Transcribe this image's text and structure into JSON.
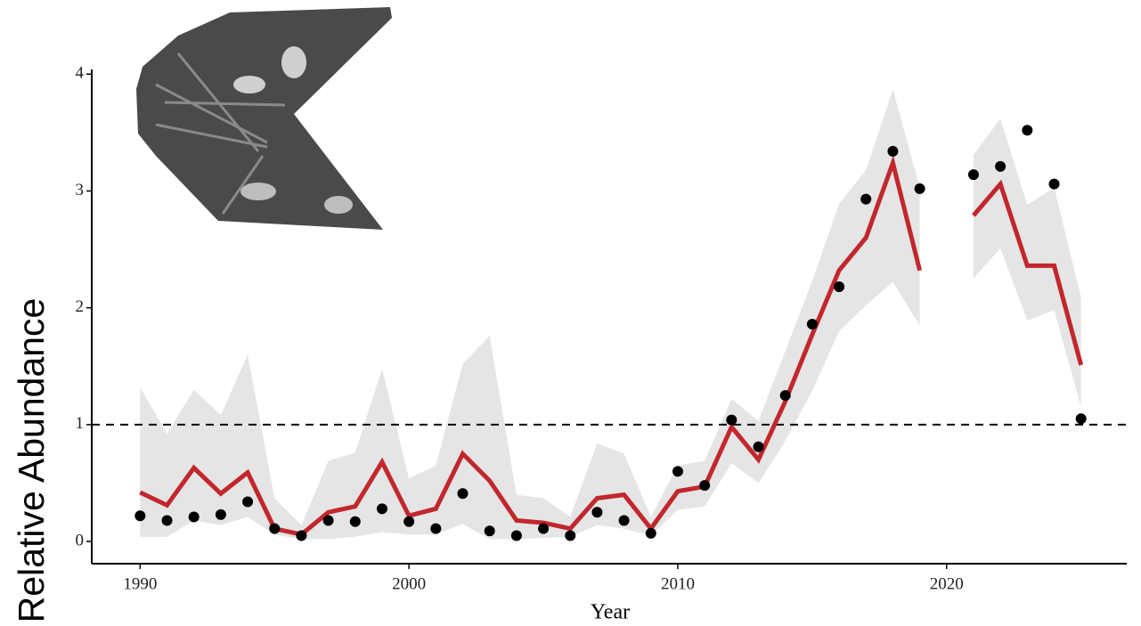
{
  "chart_data": {
    "type": "line",
    "x_label": "Year",
    "y_label": "Relative Abundance",
    "x": [
      1990,
      1991,
      1992,
      1993,
      1994,
      1995,
      1996,
      1997,
      1998,
      1999,
      2000,
      2001,
      2002,
      2003,
      2004,
      2005,
      2006,
      2007,
      2008,
      2009,
      2010,
      2011,
      2012,
      2013,
      2014,
      2015,
      2016,
      2017,
      2018,
      2019,
      2020,
      2021,
      2022,
      2023,
      2024,
      2025
    ],
    "observed": {
      "color": "#000000",
      "values": [
        0.22,
        0.18,
        0.21,
        0.23,
        0.34,
        0.11,
        0.05,
        0.18,
        0.17,
        0.28,
        0.17,
        0.11,
        0.41,
        0.09,
        0.05,
        0.11,
        0.05,
        0.25,
        0.18,
        0.07,
        0.6,
        0.48,
        1.04,
        0.81,
        1.25,
        1.86,
        2.18,
        2.93,
        3.34,
        3.02,
        null,
        3.14,
        3.21,
        3.52,
        3.06,
        1.05
      ]
    },
    "fit": {
      "color": "#c1272d",
      "values": [
        0.42,
        0.31,
        0.63,
        0.41,
        0.59,
        0.11,
        0.06,
        0.25,
        0.3,
        0.68,
        0.22,
        0.28,
        0.75,
        0.52,
        0.18,
        0.16,
        0.11,
        0.37,
        0.4,
        0.11,
        0.43,
        0.47,
        0.98,
        0.7,
        1.2,
        1.77,
        2.32,
        2.6,
        3.24,
        2.32,
        null,
        2.79,
        3.06,
        2.36,
        2.36,
        1.51
      ]
    },
    "band": {
      "color": "#e5e5e5",
      "lower": [
        0.04,
        0.04,
        0.18,
        0.14,
        0.21,
        0.06,
        0.02,
        0.02,
        0.04,
        0.08,
        0.06,
        0.06,
        0.15,
        0.02,
        0.02,
        0.03,
        0.04,
        0.14,
        0.11,
        0.05,
        0.27,
        0.3,
        0.67,
        0.5,
        0.86,
        1.29,
        1.8,
        2.02,
        2.22,
        1.85,
        null,
        2.25,
        2.51,
        1.89,
        1.98,
        1.15
      ],
      "upper": [
        1.32,
        0.92,
        1.3,
        1.08,
        1.6,
        0.37,
        0.14,
        0.69,
        0.76,
        1.48,
        0.54,
        0.65,
        1.52,
        1.76,
        0.4,
        0.37,
        0.21,
        0.84,
        0.75,
        0.21,
        0.65,
        0.69,
        1.22,
        1.03,
        1.63,
        2.23,
        2.89,
        3.18,
        3.87,
        3.03,
        null,
        3.31,
        3.62,
        2.88,
        3.03,
        2.09
      ]
    },
    "hline": 1,
    "xlim": [
      1988.2,
      2026.7
    ],
    "ylim": [
      -0.19,
      4.04
    ],
    "xticks": [
      1990,
      2000,
      2010,
      2020
    ],
    "yticks": [
      0,
      1,
      2,
      3,
      4
    ],
    "grid": false
  }
}
